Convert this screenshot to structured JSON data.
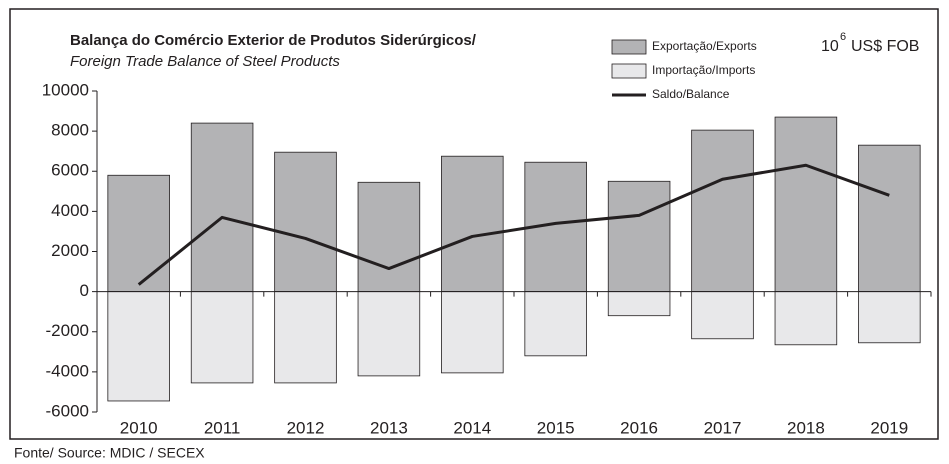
{
  "chart_data": {
    "type": "bar_line",
    "title": "Balança do Comércio Exterior de Produtos Siderúrgicos/",
    "subtitle": "Foreign Trade Balance of Steel Products",
    "unit_base": "10",
    "unit_exponent": "6",
    "unit_text": "US$ FOB",
    "source": "Fonte/ Source: MDIC / SECEX",
    "categories": [
      "2010",
      "2011",
      "2012",
      "2013",
      "2014",
      "2015",
      "2016",
      "2017",
      "2018",
      "2019"
    ],
    "series": [
      {
        "name": "Exportação/Exports",
        "type": "bar",
        "color": "#b3b3b5",
        "values": [
          5800,
          8400,
          6950,
          5450,
          6750,
          6450,
          5500,
          8050,
          8700,
          7300
        ]
      },
      {
        "name": "Importação/Imports",
        "type": "bar",
        "color": "#e8e8ea",
        "values": [
          -5450,
          -4550,
          -4550,
          -4200,
          -4050,
          -3200,
          -1200,
          -2350,
          -2650,
          -2550
        ]
      },
      {
        "name": "Saldo/Balance",
        "type": "line",
        "color": "#231f20",
        "values": [
          350,
          3700,
          2650,
          1150,
          2750,
          3400,
          3800,
          5600,
          6300,
          4800
        ]
      }
    ],
    "ylim": [
      -6000,
      10000
    ],
    "yticks": [
      -6000,
      -4000,
      -2000,
      0,
      2000,
      4000,
      6000,
      8000,
      10000
    ],
    "grid": false
  }
}
